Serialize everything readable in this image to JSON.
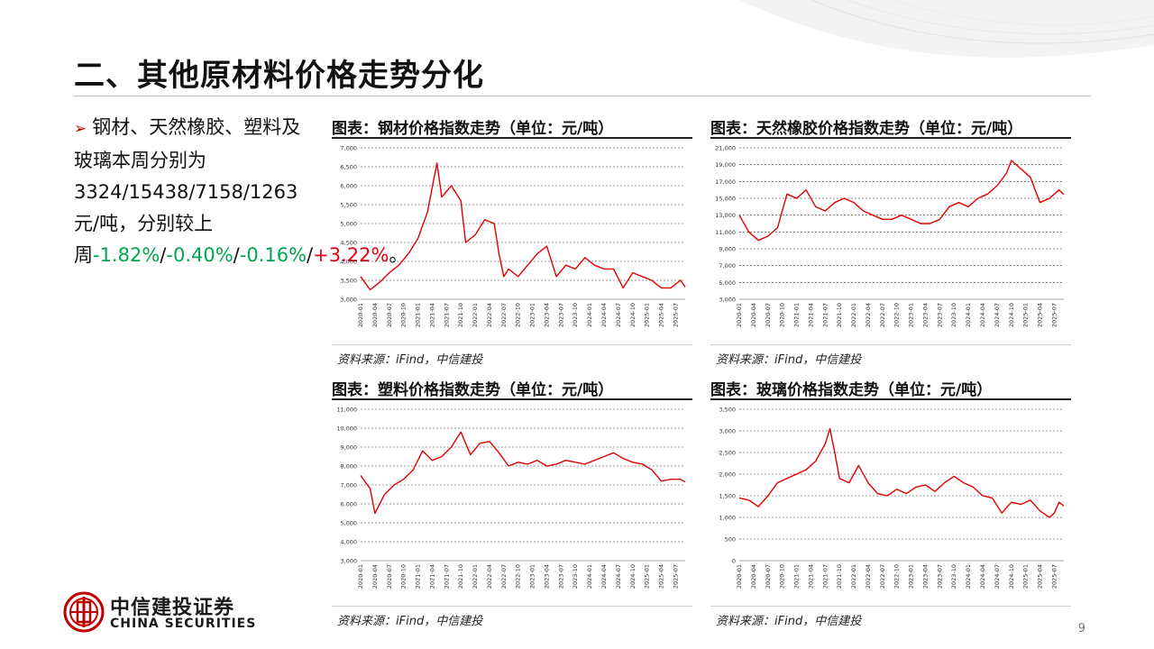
{
  "page": {
    "title": "二、其他原材料价格走势分化",
    "page_number": "9",
    "brand_color": "#c00000"
  },
  "bullet": {
    "marker": "➢",
    "text_intro": "钢材、天然橡胶、塑料及玻璃本周分别为3324/15438/7158/1263元/吨，分别较上周",
    "changes": [
      "-1.82%",
      "-0.40%",
      "-0.16%",
      "+3.22%"
    ],
    "separator": "/",
    "ending": "。"
  },
  "logo": {
    "cn": "中信建投证券",
    "en": "CHINA SECURITIES"
  },
  "chart_data": [
    {
      "type": "line",
      "title": "图表：钢材价格指数走势（单位：元/吨）",
      "source": "资料来源：iFind，中信建投",
      "line_color": "#e00000",
      "grid": true,
      "ylim": [
        3000,
        7000
      ],
      "yticks": [
        "3,000",
        "3,500",
        "4,000",
        "4,500",
        "5,000",
        "5,500",
        "6,000",
        "6,500",
        "7,000"
      ],
      "xticks": [
        "2020-01",
        "2020-04",
        "2020-07",
        "2020-10",
        "2021-01",
        "2021-04",
        "2021-07",
        "2021-10",
        "2022-01",
        "2022-04",
        "2022-07",
        "2022-10",
        "2023-01",
        "2023-04",
        "2023-07",
        "2023-10",
        "2024-01",
        "2024-04",
        "2024-07",
        "2024-10",
        "2025-01",
        "2025-04",
        "2025-07"
      ],
      "x": [
        "2020-01",
        "2020-03",
        "2020-05",
        "2020-07",
        "2020-09",
        "2020-11",
        "2021-01",
        "2021-03",
        "2021-05",
        "2021-06",
        "2021-08",
        "2021-10",
        "2021-11",
        "2022-01",
        "2022-03",
        "2022-05",
        "2022-06",
        "2022-07",
        "2022-08",
        "2022-10",
        "2022-12",
        "2023-02",
        "2023-04",
        "2023-06",
        "2023-08",
        "2023-10",
        "2023-12",
        "2024-02",
        "2024-04",
        "2024-06",
        "2024-08",
        "2024-10",
        "2024-12",
        "2025-02",
        "2025-04",
        "2025-06",
        "2025-08",
        "2025-09"
      ],
      "values": [
        3600,
        3250,
        3450,
        3700,
        3900,
        4200,
        4600,
        5300,
        6600,
        5700,
        6000,
        5600,
        4500,
        4700,
        5100,
        5000,
        4200,
        3600,
        3800,
        3600,
        3900,
        4200,
        4400,
        3600,
        3900,
        3800,
        4100,
        3900,
        3800,
        3800,
        3300,
        3700,
        3600,
        3500,
        3300,
        3300,
        3500,
        3324
      ]
    },
    {
      "type": "line",
      "title": "图表：天然橡胶价格指数走势（单位：元/吨）",
      "source": "资料来源：iFind，中信建投",
      "line_color": "#e00000",
      "grid": true,
      "ylim": [
        3000,
        21000
      ],
      "yticks": [
        "3,000",
        "5,000",
        "7,000",
        "9,000",
        "11,000",
        "13,000",
        "15,000",
        "17,000",
        "19,000",
        "21,000"
      ],
      "xticks": [
        "2020-01",
        "2020-04",
        "2020-07",
        "2020-10",
        "2021-01",
        "2021-04",
        "2021-07",
        "2021-10",
        "2022-01",
        "2022-04",
        "2022-07",
        "2022-10",
        "2023-01",
        "2023-04",
        "2023-07",
        "2023-10",
        "2024-01",
        "2024-04",
        "2024-07",
        "2024-10",
        "2025-01",
        "2025-04",
        "2025-07"
      ],
      "x": [
        "2020-01",
        "2020-03",
        "2020-05",
        "2020-07",
        "2020-09",
        "2020-11",
        "2021-01",
        "2021-03",
        "2021-05",
        "2021-07",
        "2021-09",
        "2021-11",
        "2022-01",
        "2022-03",
        "2022-05",
        "2022-07",
        "2022-09",
        "2022-11",
        "2023-01",
        "2023-03",
        "2023-05",
        "2023-07",
        "2023-09",
        "2023-11",
        "2024-01",
        "2024-03",
        "2024-05",
        "2024-07",
        "2024-09",
        "2024-10",
        "2024-12",
        "2025-02",
        "2025-04",
        "2025-06",
        "2025-08",
        "2025-09"
      ],
      "values": [
        13000,
        11000,
        10000,
        10500,
        11500,
        15500,
        15000,
        16000,
        14000,
        13500,
        14500,
        15000,
        14500,
        13500,
        13000,
        12500,
        12500,
        13000,
        12500,
        12000,
        12000,
        12500,
        14000,
        14500,
        14000,
        15000,
        15500,
        16500,
        18000,
        19500,
        18500,
        17500,
        14500,
        15000,
        16000,
        15438
      ]
    },
    {
      "type": "line",
      "title": "图表：塑料价格指数走势（单位：元/吨）",
      "source": "资料来源：iFind，中信建投",
      "line_color": "#e00000",
      "grid": true,
      "ylim": [
        3000,
        11000
      ],
      "yticks": [
        "3,000",
        "4,000",
        "5,000",
        "6,000",
        "7,000",
        "8,000",
        "9,000",
        "10,000",
        "11,000"
      ],
      "xticks": [
        "2020-01",
        "2020-04",
        "2020-07",
        "2020-10",
        "2021-01",
        "2021-04",
        "2021-07",
        "2021-10",
        "2022-01",
        "2022-04",
        "2022-07",
        "2022-10",
        "2023-01",
        "2023-04",
        "2023-07",
        "2023-10",
        "2024-01",
        "2024-04",
        "2024-07",
        "2024-10",
        "2025-01",
        "2025-04",
        "2025-07"
      ],
      "x": [
        "2020-01",
        "2020-03",
        "2020-04",
        "2020-06",
        "2020-08",
        "2020-10",
        "2020-12",
        "2021-02",
        "2021-04",
        "2021-06",
        "2021-08",
        "2021-10",
        "2021-12",
        "2022-02",
        "2022-04",
        "2022-06",
        "2022-08",
        "2022-10",
        "2022-12",
        "2023-02",
        "2023-04",
        "2023-06",
        "2023-08",
        "2023-10",
        "2023-12",
        "2024-02",
        "2024-04",
        "2024-06",
        "2024-08",
        "2024-10",
        "2024-12",
        "2025-02",
        "2025-04",
        "2025-06",
        "2025-08",
        "2025-09"
      ],
      "values": [
        7500,
        6800,
        5500,
        6500,
        7000,
        7300,
        7800,
        8800,
        8300,
        8500,
        9000,
        9800,
        8600,
        9200,
        9300,
        8700,
        8000,
        8200,
        8100,
        8300,
        8000,
        8100,
        8300,
        8200,
        8100,
        8300,
        8500,
        8700,
        8400,
        8200,
        8100,
        7800,
        7200,
        7300,
        7300,
        7158
      ]
    },
    {
      "type": "line",
      "title": "图表：玻璃价格指数走势（单位：元/吨）",
      "source": "资料来源：iFind，中信建投",
      "line_color": "#e00000",
      "grid": true,
      "ylim": [
        0,
        3500
      ],
      "yticks": [
        "0",
        "500",
        "1,000",
        "1,500",
        "2,000",
        "2,500",
        "3,000",
        "3,500"
      ],
      "xticks": [
        "2020-01",
        "2020-04",
        "2020-07",
        "2020-10",
        "2021-01",
        "2021-04",
        "2021-07",
        "2021-10",
        "2022-01",
        "2022-04",
        "2022-07",
        "2022-10",
        "2023-01",
        "2023-04",
        "2023-07",
        "2023-10",
        "2024-01",
        "2024-04",
        "2024-07",
        "2024-10",
        "2025-01",
        "2025-04",
        "2025-07"
      ],
      "x": [
        "2020-01",
        "2020-03",
        "2020-05",
        "2020-07",
        "2020-09",
        "2020-11",
        "2021-01",
        "2021-03",
        "2021-05",
        "2021-07",
        "2021-08",
        "2021-09",
        "2021-10",
        "2021-12",
        "2022-02",
        "2022-04",
        "2022-06",
        "2022-08",
        "2022-10",
        "2022-12",
        "2023-02",
        "2023-04",
        "2023-06",
        "2023-08",
        "2023-10",
        "2023-12",
        "2024-02",
        "2024-04",
        "2024-06",
        "2024-08",
        "2024-10",
        "2024-12",
        "2025-02",
        "2025-04",
        "2025-06",
        "2025-07",
        "2025-08",
        "2025-09"
      ],
      "values": [
        1450,
        1400,
        1250,
        1500,
        1800,
        1900,
        2000,
        2100,
        2300,
        2700,
        3050,
        2500,
        1900,
        1800,
        2200,
        1800,
        1550,
        1500,
        1650,
        1550,
        1700,
        1750,
        1600,
        1800,
        1950,
        1800,
        1700,
        1500,
        1450,
        1100,
        1350,
        1300,
        1400,
        1150,
        1000,
        1100,
        1350,
        1263
      ]
    }
  ]
}
